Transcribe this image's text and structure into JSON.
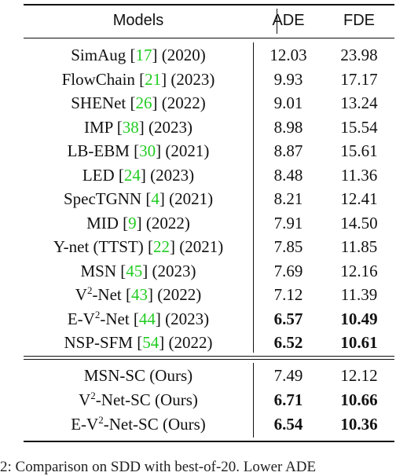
{
  "header": {
    "models": "Models",
    "ade": "ADE",
    "fde": "FDE"
  },
  "rows": [
    {
      "pre": "SimAug [",
      "cite": "17",
      "post": "] (2020)",
      "ade": "12.03",
      "fde": "23.98"
    },
    {
      "pre": "FlowChain [",
      "cite": "21",
      "post": "] (2023)",
      "ade": "9.93",
      "fde": "17.17"
    },
    {
      "pre": "SHENet [",
      "cite": "26",
      "post": "] (2022)",
      "ade": "9.01",
      "fde": "13.24"
    },
    {
      "pre": "IMP [",
      "cite": "38",
      "post": "] (2023)",
      "ade": "8.98",
      "fde": "15.54"
    },
    {
      "pre": "LB-EBM [",
      "cite": "30",
      "post": "] (2021)",
      "ade": "8.87",
      "fde": "15.61"
    },
    {
      "pre": "LED [",
      "cite": "24",
      "post": "] (2023)",
      "ade": "8.48",
      "fde": "11.36"
    },
    {
      "pre": "SpecTGNN [",
      "cite": "4",
      "post": "] (2021)",
      "ade": "8.21",
      "fde": "12.41"
    },
    {
      "pre": "MID [",
      "cite": "9",
      "post": "] (2022)",
      "ade": "7.91",
      "fde": "14.50"
    },
    {
      "pre": "Y-net (TTST) [",
      "cite": "22",
      "post": "] (2021)",
      "ade": "7.85",
      "fde": "11.85"
    },
    {
      "pre": "MSN [",
      "cite": "45",
      "post": "] (2023)",
      "ade": "7.69",
      "fde": "12.16"
    },
    {
      "pre_a": "V",
      "sup": "2",
      "pre_b": "-Net [",
      "cite": "43",
      "post": "] (2022)",
      "ade": "7.12",
      "fde": "11.39"
    },
    {
      "pre_a": "E-V",
      "sup": "2",
      "pre_b": "-Net [",
      "cite": "44",
      "post": "] (2023)",
      "ade": "6.57",
      "fde": "10.49"
    },
    {
      "pre": "NSP-SFM [",
      "cite": "54",
      "post": "] (2022)",
      "ade": "6.52",
      "fde": "10.61"
    }
  ],
  "ours": [
    {
      "name": "MSN-SC (Ours)",
      "ade": "7.49",
      "fde": "12.12"
    },
    {
      "name_a": "V",
      "sup": "2",
      "name_b": "-Net-SC (Ours)",
      "ade": "6.71",
      "fde": "10.66"
    },
    {
      "name_a": "E-V",
      "sup": "2",
      "name_b": "-Net-SC (Ours)",
      "ade": "6.54",
      "fde": "10.36"
    }
  ],
  "caption": "2: Comparison on SDD with best-of-20. Lower ADE"
}
